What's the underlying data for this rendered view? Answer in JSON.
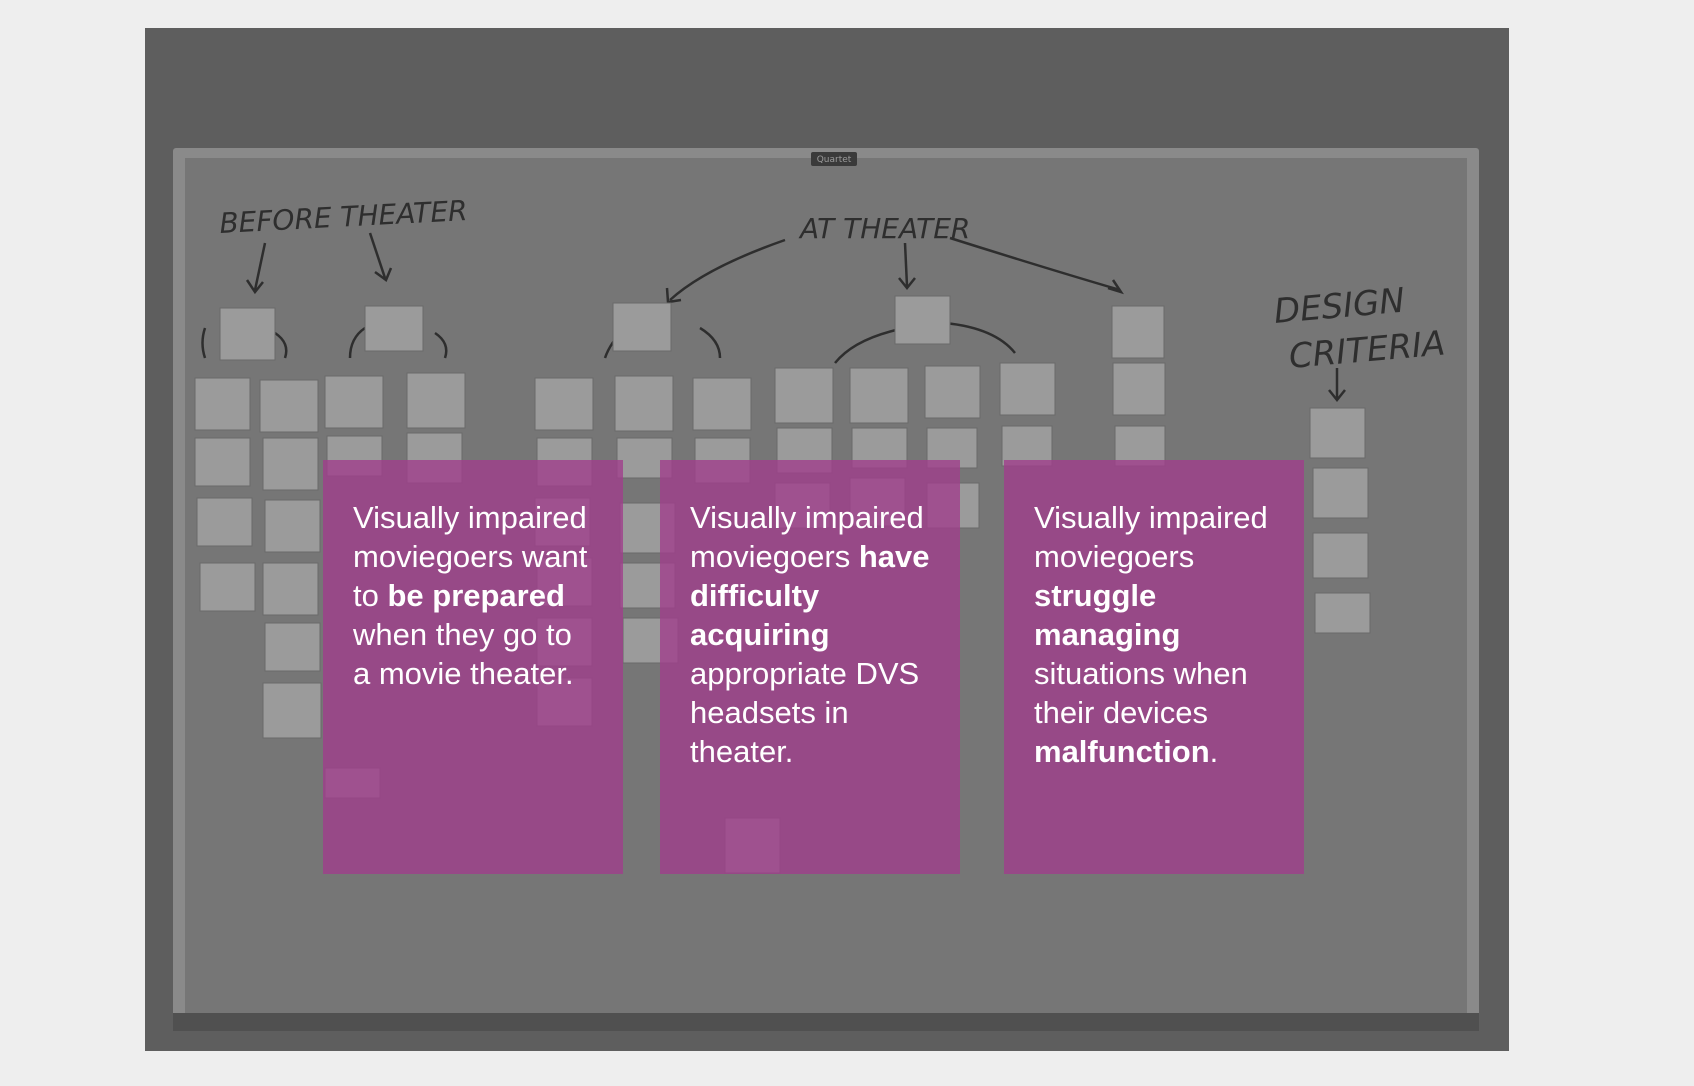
{
  "board": {
    "brand_label": "Quartet",
    "headings": {
      "before": "BEFORE THEATER",
      "at": "AT THEATER",
      "design": "DESIGN",
      "criteria": "CRITERIA"
    }
  },
  "colors": {
    "page_bg": "#eeeeee",
    "card_overlay": "#a03c8c",
    "text": "#ffffff"
  },
  "cards": [
    {
      "p1": "Visually impaired moviegoers want to ",
      "b1": "be prepared",
      "p2": " when they go to a movie theater.",
      "b2": "",
      "p3": ""
    },
    {
      "p1": "Visually impaired moviegoers ",
      "b1": "have difficulty acquiring",
      "p2": " appropriate DVS headsets in theater.",
      "b2": "",
      "p3": ""
    },
    {
      "p1": "Visually impaired moviegoers ",
      "b1": "struggle managing",
      "p2": " situations when their devices ",
      "b2": "malfunction",
      "p3": "."
    }
  ]
}
